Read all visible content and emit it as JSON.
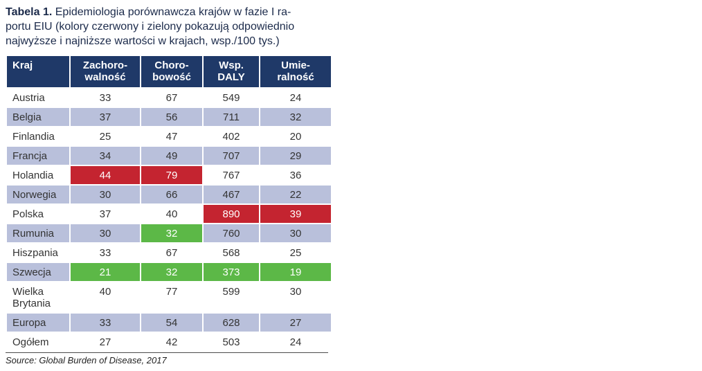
{
  "title": {
    "bold": "Tabela 1.",
    "rest": " Epidemiologia porównawcza krajów w fazie I ra-\nportu EIU (kolory czerwony i zielony pokazują odpowiednio\nnajwyższe i najniższe wartości w krajach, wsp./100 tys.)"
  },
  "table": {
    "headers": [
      "Kraj",
      "Zachoro-\nwalność",
      "Choro-\nbowość",
      "Wsp.\nDALY",
      "Umie-\nralność"
    ],
    "rows": [
      {
        "name": "Austria",
        "cells": [
          {
            "v": "33"
          },
          {
            "v": "67"
          },
          {
            "v": "549"
          },
          {
            "v": "24"
          }
        ]
      },
      {
        "name": "Belgia",
        "cells": [
          {
            "v": "37"
          },
          {
            "v": "56"
          },
          {
            "v": "711"
          },
          {
            "v": "32"
          }
        ]
      },
      {
        "name": "Finlandia",
        "cells": [
          {
            "v": "25"
          },
          {
            "v": "47"
          },
          {
            "v": "402"
          },
          {
            "v": "20"
          }
        ]
      },
      {
        "name": "Francja",
        "cells": [
          {
            "v": "34"
          },
          {
            "v": "49"
          },
          {
            "v": "707"
          },
          {
            "v": "29"
          }
        ]
      },
      {
        "name": "Holandia",
        "cells": [
          {
            "v": "44",
            "hl": "max"
          },
          {
            "v": "79",
            "hl": "max"
          },
          {
            "v": "767"
          },
          {
            "v": "36"
          }
        ]
      },
      {
        "name": "Norwegia",
        "cells": [
          {
            "v": "30"
          },
          {
            "v": "66"
          },
          {
            "v": "467"
          },
          {
            "v": "22"
          }
        ]
      },
      {
        "name": "Polska",
        "cells": [
          {
            "v": "37"
          },
          {
            "v": "40"
          },
          {
            "v": "890",
            "hl": "max"
          },
          {
            "v": "39",
            "hl": "max"
          }
        ]
      },
      {
        "name": "Rumunia",
        "cells": [
          {
            "v": "30"
          },
          {
            "v": "32",
            "hl": "min"
          },
          {
            "v": "760"
          },
          {
            "v": "30"
          }
        ]
      },
      {
        "name": "Hiszpania",
        "cells": [
          {
            "v": "33"
          },
          {
            "v": "67"
          },
          {
            "v": "568"
          },
          {
            "v": "25"
          }
        ]
      },
      {
        "name": "Szwecja",
        "cells": [
          {
            "v": "21",
            "hl": "min"
          },
          {
            "v": "32",
            "hl": "min"
          },
          {
            "v": "373",
            "hl": "min"
          },
          {
            "v": "19",
            "hl": "min"
          }
        ]
      },
      {
        "name": "Wielka Brytania",
        "cells": [
          {
            "v": "40"
          },
          {
            "v": "77"
          },
          {
            "v": "599"
          },
          {
            "v": "30"
          }
        ]
      },
      {
        "name": "Europa",
        "cells": [
          {
            "v": "33"
          },
          {
            "v": "54"
          },
          {
            "v": "628"
          },
          {
            "v": "27"
          }
        ]
      },
      {
        "name": "Ogółem",
        "cells": [
          {
            "v": "27"
          },
          {
            "v": "42"
          },
          {
            "v": "503"
          },
          {
            "v": "24"
          }
        ]
      }
    ]
  },
  "source": "Source: Global Burden of Disease, 2017",
  "colors": {
    "header_bg": "#1f3968",
    "row_alt_bg": "#b9c0db",
    "max_bg": "#c42430",
    "min_bg": "#5cb847"
  }
}
